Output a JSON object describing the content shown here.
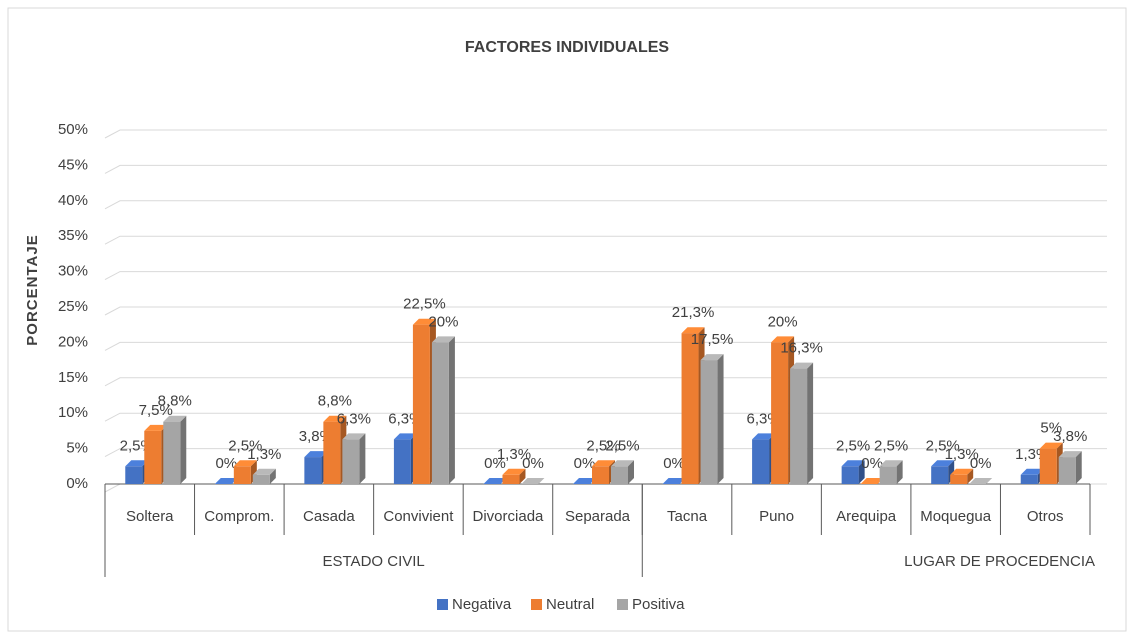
{
  "chart_data": {
    "type": "bar3d",
    "title": "FACTORES INDIVIDUALES",
    "y_label": "PORCENTAJE",
    "categories": [
      "Soltera",
      "Comprom.",
      "Casada",
      "Convivient",
      "Divorciada",
      "Separada",
      "Tacna",
      "Puno",
      "Arequipa",
      "Moquegua",
      "Otros"
    ],
    "groups": [
      {
        "label": "ESTADO CIVIL",
        "count": 6
      },
      {
        "label": "LUGAR DE PROCEDENCIA",
        "count": 5
      }
    ],
    "series": [
      {
        "name": "Negativa",
        "color": "#4472c4",
        "values": [
          2.5,
          0,
          3.8,
          6.3,
          0,
          0,
          0,
          6.3,
          2.5,
          2.5,
          1.3
        ],
        "value_labels": [
          "2,5%",
          "0%",
          "3,8%",
          "6,3%",
          "0%",
          "0%",
          "0%",
          "6,3%",
          "2,5%",
          "2,5%",
          "1,3%"
        ]
      },
      {
        "name": "Neutral",
        "color": "#ed7d31",
        "values": [
          7.5,
          2.5,
          8.8,
          22.5,
          1.3,
          2.5,
          21.3,
          20,
          0,
          1.3,
          5
        ],
        "value_labels": [
          "7,5%",
          "2,5%",
          "8,8%",
          "22,5%",
          "1,3%",
          "2,5%",
          "21,3%",
          "20%",
          "0%",
          "1,3%",
          "5%"
        ]
      },
      {
        "name": "Positiva",
        "color": "#a5a5a5",
        "values": [
          8.8,
          1.3,
          6.3,
          20,
          0,
          2.5,
          17.5,
          16.3,
          2.5,
          0,
          3.8
        ],
        "value_labels": [
          "8,8%",
          "1,3%",
          "6,3%",
          "20%",
          "0%",
          "2,5%",
          "17,5%",
          "16,3%",
          "2,5%",
          "0%",
          "3,8%"
        ]
      }
    ],
    "ylim": [
      0,
      50
    ],
    "yticks": [
      {
        "value": 0,
        "label": "0%"
      },
      {
        "value": 5,
        "label": "5%"
      },
      {
        "value": 10,
        "label": "10%"
      },
      {
        "value": 15,
        "label": "15%"
      },
      {
        "value": 20,
        "label": "20%"
      },
      {
        "value": 25,
        "label": "25%"
      },
      {
        "value": 30,
        "label": "30%"
      },
      {
        "value": 35,
        "label": "35%"
      },
      {
        "value": 40,
        "label": "40%"
      },
      {
        "value": 45,
        "label": "45%"
      },
      {
        "value": 50,
        "label": "50%"
      }
    ],
    "grid": true,
    "legend": "bottom"
  }
}
